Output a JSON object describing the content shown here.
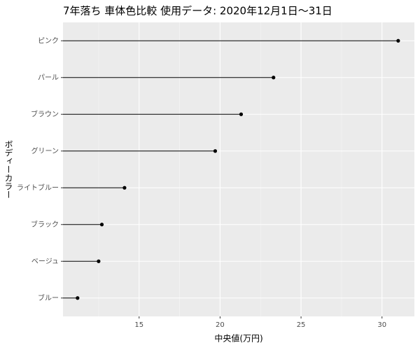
{
  "chart_data": {
    "type": "lollipop",
    "title": "7年落ち 車体色比較 使用データ: 2020年12月1日～31日",
    "x_label": "中央値(万円)",
    "y_label": "ボディーカラー",
    "categories": [
      "ピンク",
      "パール",
      "ブラウン",
      "グリーン",
      "ライトブルー",
      "ブラック",
      "ベージュ",
      "ブルー"
    ],
    "values": [
      31.0,
      23.3,
      21.3,
      19.7,
      14.1,
      12.7,
      12.5,
      11.2
    ],
    "color": "#000000",
    "xlim": [
      10.3,
      32.0
    ],
    "xticks": [
      15,
      20,
      25,
      30
    ],
    "x_minor_grid": [
      12.5,
      17.5,
      22.5,
      27.5
    ],
    "grid": true
  }
}
